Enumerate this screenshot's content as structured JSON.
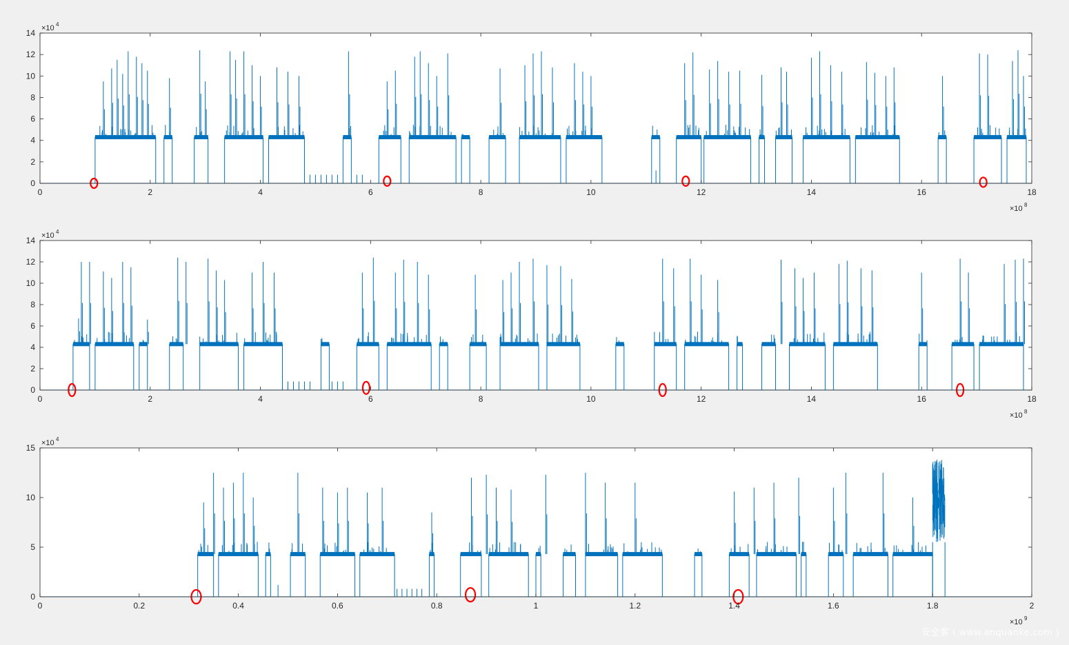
{
  "colors": {
    "signal": "#0072bd",
    "marker": "#ff0000",
    "axes_bg": "#ffffff",
    "figure_bg": "#f0f0f0",
    "axis": "#262626"
  },
  "watermark": "安全客 ( www.anquanke.com )",
  "chart_data": [
    {
      "type": "line",
      "xlim": [
        0,
        1800000000
      ],
      "ylim": [
        0,
        140000
      ],
      "x_ticks": [
        0,
        2,
        4,
        6,
        8,
        10,
        12,
        14,
        16,
        18
      ],
      "y_ticks": [
        0,
        2,
        4,
        6,
        8,
        10,
        12,
        14
      ],
      "x_exponent": {
        "base": "×10",
        "power": "8"
      },
      "y_exponent": {
        "base": "×10",
        "power": "4"
      },
      "baseline": 0,
      "plateau": 43000,
      "high_segments": [
        [
          1.0,
          2.1
        ],
        [
          2.25,
          2.4
        ],
        [
          2.8,
          3.05
        ],
        [
          3.35,
          4.05
        ],
        [
          4.15,
          4.8
        ],
        [
          5.5,
          5.65
        ],
        [
          6.15,
          6.55
        ],
        [
          6.7,
          7.55
        ],
        [
          7.65,
          7.8
        ],
        [
          8.15,
          8.45
        ],
        [
          8.7,
          9.45
        ],
        [
          9.55,
          10.2
        ],
        [
          11.1,
          11.25
        ],
        [
          11.55,
          12.0
        ],
        [
          12.05,
          12.9
        ],
        [
          13.05,
          13.15
        ],
        [
          13.35,
          13.65
        ],
        [
          13.85,
          14.7
        ],
        [
          14.8,
          15.6
        ],
        [
          16.3,
          16.45
        ],
        [
          16.95,
          17.45
        ],
        [
          17.55,
          17.9
        ]
      ],
      "spikes": [
        [
          1.15,
          95000
        ],
        [
          1.3,
          107000
        ],
        [
          1.4,
          115000
        ],
        [
          1.5,
          102000
        ],
        [
          1.6,
          123000
        ],
        [
          1.75,
          118000
        ],
        [
          1.85,
          112000
        ],
        [
          1.95,
          105000
        ],
        [
          2.35,
          98000
        ],
        [
          2.9,
          124000
        ],
        [
          3.0,
          95000
        ],
        [
          3.45,
          123000
        ],
        [
          3.55,
          115000
        ],
        [
          3.7,
          123000
        ],
        [
          3.85,
          110000
        ],
        [
          4.0,
          100000
        ],
        [
          4.3,
          108000
        ],
        [
          4.5,
          104000
        ],
        [
          4.7,
          100000
        ],
        [
          5.6,
          123000
        ],
        [
          6.3,
          95000
        ],
        [
          6.45,
          105000
        ],
        [
          6.8,
          118000
        ],
        [
          6.9,
          123000
        ],
        [
          7.05,
          112000
        ],
        [
          7.2,
          100000
        ],
        [
          7.4,
          121000
        ],
        [
          8.35,
          107000
        ],
        [
          8.8,
          110000
        ],
        [
          8.95,
          121000
        ],
        [
          9.1,
          123000
        ],
        [
          9.3,
          108000
        ],
        [
          9.7,
          112000
        ],
        [
          9.85,
          104000
        ],
        [
          10.0,
          100000
        ],
        [
          11.7,
          112000
        ],
        [
          11.85,
          122000
        ],
        [
          12.15,
          106000
        ],
        [
          12.3,
          114000
        ],
        [
          12.5,
          104000
        ],
        [
          12.7,
          105000
        ],
        [
          13.1,
          101000
        ],
        [
          13.45,
          108000
        ],
        [
          13.55,
          104000
        ],
        [
          14.0,
          117000
        ],
        [
          14.15,
          123000
        ],
        [
          14.35,
          110000
        ],
        [
          14.55,
          104000
        ],
        [
          15.0,
          113000
        ],
        [
          15.15,
          103000
        ],
        [
          15.35,
          100000
        ],
        [
          15.5,
          108000
        ],
        [
          16.38,
          100000
        ],
        [
          17.05,
          121000
        ],
        [
          17.2,
          120000
        ],
        [
          17.65,
          114000
        ],
        [
          17.75,
          124000
        ],
        [
          17.85,
          100000
        ]
      ],
      "pulses": [
        [
          4.9,
          8000
        ],
        [
          5.0,
          8000
        ],
        [
          5.1,
          8000
        ],
        [
          5.2,
          8000
        ],
        [
          5.3,
          8000
        ],
        [
          5.4,
          8000
        ],
        [
          5.75,
          8000
        ],
        [
          5.85,
          8000
        ],
        [
          11.18,
          12000
        ]
      ],
      "markers": [
        [
          0.98,
          0
        ],
        [
          6.3,
          2000
        ],
        [
          11.72,
          2000
        ],
        [
          17.12,
          1000
        ]
      ]
    },
    {
      "type": "line",
      "xlim": [
        0,
        1800000000
      ],
      "ylim": [
        0,
        140000
      ],
      "x_ticks": [
        0,
        2,
        4,
        6,
        8,
        10,
        12,
        14,
        16,
        18
      ],
      "y_ticks": [
        0,
        2,
        4,
        6,
        8,
        10,
        12,
        14
      ],
      "x_exponent": {
        "base": "×10",
        "power": "8"
      },
      "y_exponent": {
        "base": "×10",
        "power": "4"
      },
      "baseline": 0,
      "plateau": 43000,
      "high_segments": [
        [
          0.6,
          0.9
        ],
        [
          1.0,
          1.7
        ],
        [
          1.8,
          1.95
        ],
        [
          2.35,
          2.6
        ],
        [
          2.9,
          3.6
        ],
        [
          3.7,
          4.4
        ],
        [
          5.1,
          5.25
        ],
        [
          5.75,
          6.15
        ],
        [
          6.3,
          7.1
        ],
        [
          7.25,
          7.4
        ],
        [
          7.8,
          8.1
        ],
        [
          8.35,
          9.05
        ],
        [
          9.2,
          9.8
        ],
        [
          10.45,
          10.6
        ],
        [
          11.15,
          11.55
        ],
        [
          11.7,
          12.5
        ],
        [
          12.65,
          12.75
        ],
        [
          13.1,
          13.35
        ],
        [
          13.6,
          14.25
        ],
        [
          14.4,
          15.2
        ],
        [
          15.95,
          16.1
        ],
        [
          16.55,
          16.95
        ],
        [
          17.05,
          17.85
        ]
      ],
      "spikes": [
        [
          0.7,
          67000
        ],
        [
          0.75,
          120000
        ],
        [
          0.9,
          120000
        ],
        [
          1.15,
          111000
        ],
        [
          1.3,
          105000
        ],
        [
          1.5,
          120000
        ],
        [
          1.65,
          115000
        ],
        [
          1.95,
          66000
        ],
        [
          2.5,
          124000
        ],
        [
          2.65,
          120000
        ],
        [
          3.05,
          123000
        ],
        [
          3.2,
          112000
        ],
        [
          3.35,
          103000
        ],
        [
          3.85,
          110000
        ],
        [
          4.05,
          120000
        ],
        [
          4.25,
          110000
        ],
        [
          5.85,
          110000
        ],
        [
          6.05,
          124000
        ],
        [
          6.45,
          110000
        ],
        [
          6.6,
          122000
        ],
        [
          6.85,
          120000
        ],
        [
          7.05,
          108000
        ],
        [
          7.9,
          108000
        ],
        [
          8.4,
          103000
        ],
        [
          8.55,
          110000
        ],
        [
          8.7,
          120000
        ],
        [
          8.95,
          123000
        ],
        [
          9.2,
          117000
        ],
        [
          9.45,
          116000
        ],
        [
          9.65,
          104000
        ],
        [
          11.3,
          123000
        ],
        [
          11.5,
          114000
        ],
        [
          11.8,
          123000
        ],
        [
          12.0,
          108000
        ],
        [
          12.3,
          103000
        ],
        [
          13.45,
          122000
        ],
        [
          13.7,
          114000
        ],
        [
          13.85,
          105000
        ],
        [
          14.05,
          110000
        ],
        [
          14.5,
          118000
        ],
        [
          14.65,
          121000
        ],
        [
          14.9,
          114000
        ],
        [
          15.1,
          112000
        ],
        [
          16.0,
          110000
        ],
        [
          16.7,
          123000
        ],
        [
          16.85,
          110000
        ],
        [
          17.5,
          118000
        ],
        [
          17.7,
          122000
        ],
        [
          17.85,
          123000
        ]
      ],
      "pulses": [
        [
          4.5,
          8000
        ],
        [
          4.6,
          8000
        ],
        [
          4.7,
          8000
        ],
        [
          4.8,
          8000
        ],
        [
          4.9,
          8000
        ],
        [
          5.3,
          8000
        ],
        [
          5.4,
          8000
        ],
        [
          5.5,
          8000
        ]
      ],
      "markers": [
        [
          0.58,
          0
        ],
        [
          5.92,
          2000
        ],
        [
          11.3,
          0
        ],
        [
          16.7,
          0
        ]
      ]
    },
    {
      "type": "line",
      "xlim": [
        0,
        2000000000
      ],
      "ylim": [
        0,
        150000
      ],
      "x_ticks": [
        0,
        0.2,
        0.4,
        0.6,
        0.8,
        1,
        1.2,
        1.4,
        1.6,
        1.8,
        2
      ],
      "y_ticks": [
        0,
        5,
        10,
        15
      ],
      "x_exponent": {
        "base": "×10",
        "power": "9"
      },
      "y_exponent": {
        "base": "×10",
        "power": "4"
      },
      "baseline": 0,
      "plateau": 43000,
      "high_segments": [
        [
          0.318,
          0.35
        ],
        [
          0.36,
          0.44
        ],
        [
          0.455,
          0.465
        ],
        [
          0.505,
          0.535
        ],
        [
          0.565,
          0.635
        ],
        [
          0.645,
          0.715
        ],
        [
          0.785,
          0.795
        ],
        [
          0.848,
          0.89
        ],
        [
          0.905,
          0.985
        ],
        [
          1.0,
          1.01
        ],
        [
          1.055,
          1.08
        ],
        [
          1.1,
          1.165
        ],
        [
          1.175,
          1.255
        ],
        [
          1.32,
          1.335
        ],
        [
          1.39,
          1.43
        ],
        [
          1.445,
          1.525
        ],
        [
          1.535,
          1.545
        ],
        [
          1.59,
          1.62
        ],
        [
          1.64,
          1.71
        ],
        [
          1.72,
          1.8
        ]
      ],
      "spikes": [
        [
          0.33,
          95000
        ],
        [
          0.35,
          125000
        ],
        [
          0.37,
          110000
        ],
        [
          0.39,
          115000
        ],
        [
          0.41,
          125000
        ],
        [
          0.43,
          100000
        ],
        [
          0.52,
          125000
        ],
        [
          0.57,
          110000
        ],
        [
          0.6,
          105000
        ],
        [
          0.62,
          110000
        ],
        [
          0.66,
          105000
        ],
        [
          0.69,
          110000
        ],
        [
          0.79,
          85000
        ],
        [
          0.87,
          120000
        ],
        [
          0.9,
          123000
        ],
        [
          0.92,
          110000
        ],
        [
          0.95,
          108000
        ],
        [
          1.02,
          123000
        ],
        [
          1.1,
          125000
        ],
        [
          1.14,
          115000
        ],
        [
          1.2,
          115000
        ],
        [
          1.4,
          106000
        ],
        [
          1.44,
          110000
        ],
        [
          1.48,
          115000
        ],
        [
          1.53,
          120000
        ],
        [
          1.6,
          110000
        ],
        [
          1.625,
          125000
        ],
        [
          1.7,
          125000
        ],
        [
          1.76,
          100000
        ]
      ],
      "pulses": [
        [
          0.72,
          8000
        ],
        [
          0.73,
          8000
        ],
        [
          0.74,
          8000
        ],
        [
          0.75,
          8000
        ],
        [
          0.76,
          8000
        ],
        [
          0.77,
          8000
        ],
        [
          0.48,
          12000
        ]
      ],
      "burst": [
        1.8,
        1.825,
        55000,
        140000
      ],
      "markers": [
        [
          0.315,
          0
        ],
        [
          0.868,
          2000
        ],
        [
          1.408,
          0
        ]
      ]
    }
  ]
}
